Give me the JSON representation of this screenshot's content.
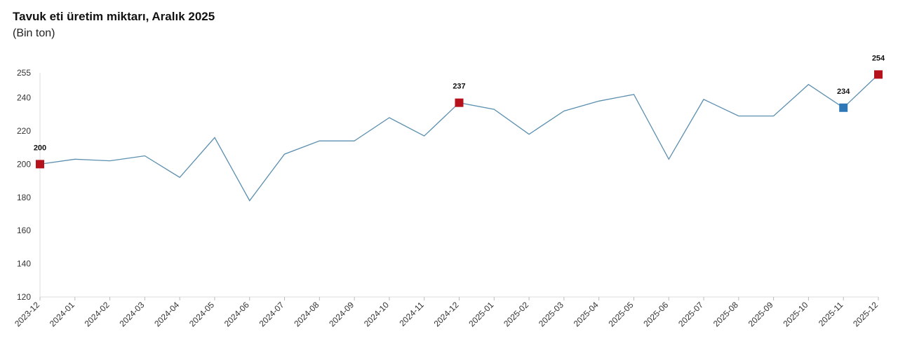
{
  "chart_data": {
    "type": "line",
    "title": "Tavuk eti üretim miktarı, Aralık 2025",
    "subtitle": "(Bin ton)",
    "xlabel": "",
    "ylabel": "",
    "ylim": [
      120,
      255
    ],
    "yticks": [
      120,
      140,
      160,
      180,
      200,
      220,
      240,
      255
    ],
    "grid": false,
    "legend": "none",
    "series": [
      {
        "color": "#5b8fb0",
        "x": [
          "2023-12",
          "2024-01",
          "2024-02",
          "2024-03",
          "2024-04",
          "2024-05",
          "2024-06",
          "2024-07",
          "2024-08",
          "2024-09",
          "2024-10",
          "2024-11",
          "2024-12",
          "2025-01",
          "2025-02",
          "2025-03",
          "2025-04",
          "2025-05",
          "2025-06",
          "2025-07",
          "2025-08",
          "2025-09",
          "2025-10",
          "2025-11",
          "2025-12"
        ],
        "values": [
          200,
          203,
          202,
          205,
          192,
          216,
          178,
          206,
          214,
          214,
          228,
          217,
          237,
          233,
          218,
          232,
          238,
          242,
          203,
          239,
          229,
          229,
          248,
          234,
          254
        ]
      }
    ],
    "highlights": [
      {
        "x": "2023-12",
        "value": 200,
        "label": "200",
        "color": "#b5121b"
      },
      {
        "x": "2024-12",
        "value": 237,
        "label": "237",
        "color": "#b5121b"
      },
      {
        "x": "2025-11",
        "value": 234,
        "label": "234",
        "color": "#2f78b7"
      },
      {
        "x": "2025-12",
        "value": 254,
        "label": "254",
        "color": "#b5121b"
      }
    ]
  }
}
